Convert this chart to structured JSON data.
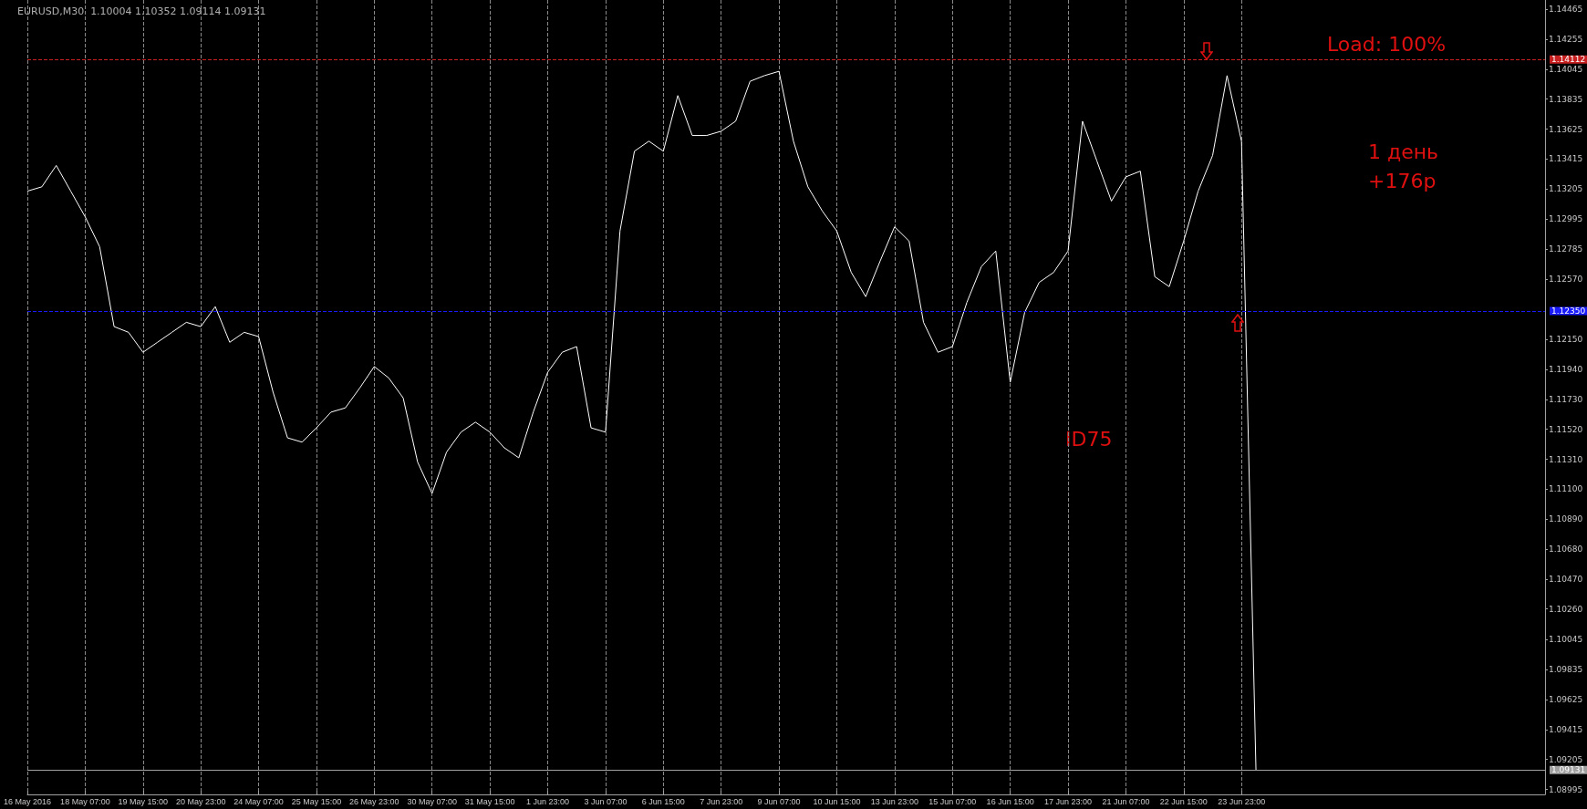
{
  "chart_data": {
    "type": "line",
    "title": "EURUSD,M30  1.10004 1.10352 1.09114 1.09131",
    "annotations": [
      "Load: 100%",
      "1 день\n+176p",
      "ID75"
    ],
    "categories": [
      "16 May 2016",
      null,
      null,
      null,
      "18 May 07:00",
      null,
      null,
      null,
      "19 May 15:00",
      null,
      null,
      null,
      "20 May 23:00",
      null,
      null,
      null,
      "24 May 07:00",
      null,
      null,
      null,
      "25 May 15:00",
      null,
      null,
      null,
      "26 May 23:00",
      null,
      null,
      null,
      "30 May 07:00",
      null,
      null,
      null,
      "31 May 15:00",
      null,
      null,
      null,
      "1 Jun 23:00",
      null,
      null,
      null,
      "3 Jun 07:00",
      null,
      null,
      null,
      "6 Jun 15:00",
      null,
      null,
      null,
      "7 Jun 23:00",
      null,
      null,
      null,
      "9 Jun 07:00",
      null,
      null,
      null,
      "10 Jun 15:00",
      null,
      null,
      null,
      "13 Jun 23:00",
      null,
      null,
      null,
      "15 Jun 07:00",
      null,
      null,
      null,
      "16 Jun 15:00",
      null,
      null,
      null,
      "17 Jun 23:00",
      null,
      null,
      null,
      "21 Jun 07:00",
      null,
      null,
      null,
      "22 Jun 15:00",
      null,
      null,
      null,
      "23 Jun 23:00",
      null,
      null,
      null,
      null,
      null,
      null,
      null,
      null,
      null,
      null,
      null,
      null,
      null,
      null,
      null,
      null,
      null,
      null,
      null,
      null,
      null
    ],
    "series": [
      {
        "color": "#ffffff",
        "values": [
          1.1319,
          1.1322,
          1.1337,
          1.1319,
          1.1301,
          1.128,
          1.1224,
          1.122,
          1.1206,
          1.1213,
          1.122,
          1.1227,
          1.1224,
          1.1238,
          1.1213,
          1.122,
          1.1217,
          1.1178,
          1.1146,
          1.1143,
          1.1153,
          1.1164,
          1.1167,
          1.1181,
          1.1196,
          1.1188,
          1.1174,
          1.1129,
          1.1107,
          1.1136,
          1.115,
          1.1157,
          1.115,
          1.1139,
          1.1132,
          1.1164,
          1.1192,
          1.1206,
          1.121,
          1.1153,
          1.115,
          1.1291,
          1.1347,
          1.1354,
          1.1347,
          1.1386,
          1.1358,
          1.1358,
          1.1361,
          1.1368,
          1.1396,
          1.14,
          1.1403,
          1.1354,
          1.1322,
          1.1305,
          1.1291,
          1.1262,
          1.1245,
          1.127,
          1.1294,
          1.1284,
          1.1227,
          1.1206,
          1.121,
          1.1241,
          1.1266,
          1.1277,
          1.1185,
          1.1234,
          1.1255,
          1.1262,
          1.1277,
          1.1368,
          1.134,
          1.1312,
          1.1329,
          1.1333,
          1.1259,
          1.1252,
          1.1284,
          1.1319,
          1.1344,
          1.14,
          1.1354,
          1.0913,
          null,
          null,
          null,
          null,
          null,
          null,
          null,
          null,
          null,
          null,
          null,
          null,
          null,
          null,
          null,
          null,
          null,
          null,
          null,
          null
        ]
      }
    ],
    "ylim": [
      1.0896,
      1.1453
    ],
    "yticks": [
      {
        "value": 1.14465,
        "label": "1.14465"
      },
      {
        "value": 1.14255,
        "label": "1.14255"
      },
      {
        "value": 1.14045,
        "label": "1.14045"
      },
      {
        "value": 1.13835,
        "label": "1.13835"
      },
      {
        "value": 1.13625,
        "label": "1.13625"
      },
      {
        "value": 1.13415,
        "label": "1.13415"
      },
      {
        "value": 1.13205,
        "label": "1.13205"
      },
      {
        "value": 1.12995,
        "label": "1.12995"
      },
      {
        "value": 1.12785,
        "label": "1.12785"
      },
      {
        "value": 1.1257,
        "label": "1.12570"
      },
      {
        "value": 1.1215,
        "label": "1.12150"
      },
      {
        "value": 1.1194,
        "label": "1.11940"
      },
      {
        "value": 1.1173,
        "label": "1.11730"
      },
      {
        "value": 1.1152,
        "label": "1.11520"
      },
      {
        "value": 1.1131,
        "label": "1.11310"
      },
      {
        "value": 1.111,
        "label": "1.11100"
      },
      {
        "value": 1.1089,
        "label": "1.10890"
      },
      {
        "value": 1.1068,
        "label": "1.10680"
      },
      {
        "value": 1.1047,
        "label": "1.10470"
      },
      {
        "value": 1.1026,
        "label": "1.10260"
      },
      {
        "value": 1.10045,
        "label": "1.10045"
      },
      {
        "value": 1.09835,
        "label": "1.09835"
      },
      {
        "value": 1.09625,
        "label": "1.09625"
      },
      {
        "value": 1.09415,
        "label": "1.09415"
      },
      {
        "value": 1.09205,
        "label": "1.09205"
      },
      {
        "value": 1.08995,
        "label": "1.08995"
      }
    ],
    "ref_lines": [
      {
        "axis": "y",
        "value": 1.14112,
        "label": "1.14112",
        "color": "#c82020",
        "line_style": "dashed"
      },
      {
        "axis": "y",
        "value": 1.1235,
        "label": "1.12350",
        "color": "#1a1aff",
        "line_style": "dashed"
      },
      {
        "axis": "y",
        "value": 1.09131,
        "label": "1.09131",
        "color": "#a0a0a0",
        "line_style": "solid"
      }
    ],
    "grid": "x",
    "marker": "none",
    "line_style": "solid"
  }
}
